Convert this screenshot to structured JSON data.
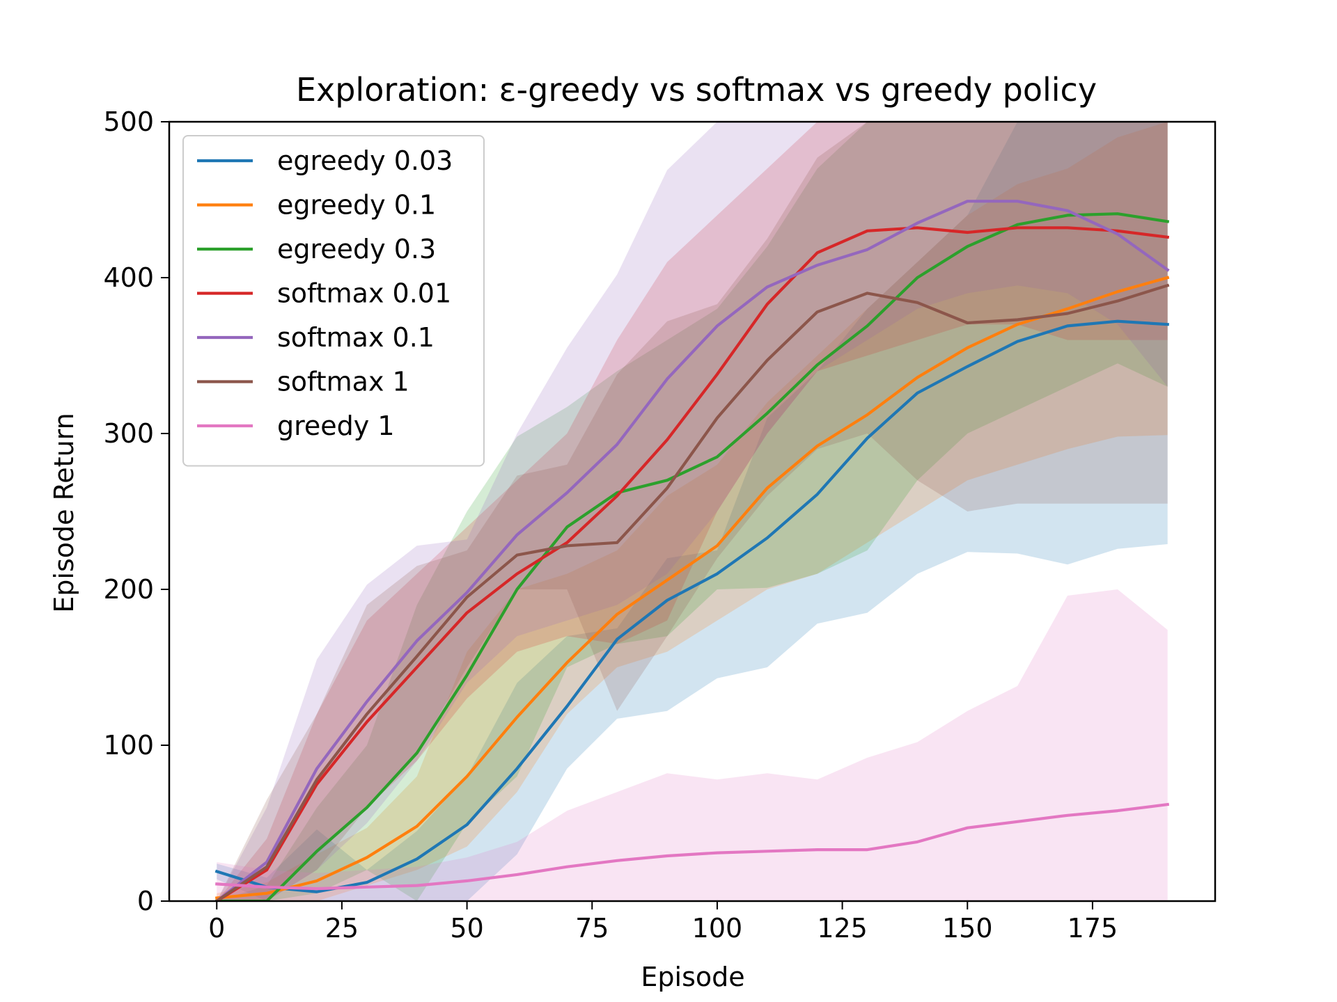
{
  "chart_data": {
    "type": "line",
    "title": "Exploration: ε-greedy vs softmax vs greedy policy",
    "xlabel": "Episode",
    "ylabel": "Episode Return",
    "xlim": [
      -9.5,
      199.5
    ],
    "ylim": [
      0,
      500
    ],
    "xticks": [
      0,
      25,
      50,
      75,
      100,
      125,
      150,
      175
    ],
    "yticks": [
      0,
      100,
      200,
      300,
      400,
      500
    ],
    "grid": false,
    "legend_position": "upper-left",
    "shaded_band": "mean ± std",
    "x": [
      0,
      10,
      20,
      30,
      40,
      50,
      60,
      70,
      80,
      90,
      100,
      110,
      120,
      130,
      140,
      150,
      160,
      170,
      180,
      190
    ],
    "series": [
      {
        "name": "egreedy 0.03",
        "color": "#1f77b4",
        "values": [
          19,
          9,
          6,
          12,
          27,
          49,
          85,
          125,
          168,
          193,
          210,
          233,
          261,
          297,
          326,
          343,
          359,
          369,
          372,
          370
        ],
        "lower": [
          14,
          0,
          0,
          0,
          0,
          0,
          30,
          85,
          117,
          122,
          143,
          150,
          178,
          185,
          210,
          224,
          223,
          216,
          226,
          229
        ],
        "upper": [
          24,
          15,
          46,
          20,
          45,
          80,
          140,
          170,
          175,
          220,
          225,
          310,
          340,
          380,
          410,
          440,
          500,
          500,
          500,
          500
        ]
      },
      {
        "name": "egreedy 0.1",
        "color": "#ff7f0e",
        "values": [
          2,
          5,
          13,
          28,
          48,
          80,
          118,
          153,
          184,
          206,
          228,
          265,
          292,
          312,
          336,
          355,
          370,
          380,
          391,
          400
        ],
        "lower": [
          0,
          0,
          0,
          10,
          20,
          35,
          70,
          120,
          150,
          160,
          180,
          200,
          210,
          230,
          250,
          270,
          280,
          290,
          298,
          299
        ],
        "upper": [
          5,
          12,
          30,
          47,
          80,
          160,
          200,
          210,
          225,
          260,
          280,
          320,
          350,
          380,
          410,
          440,
          460,
          470,
          490,
          500
        ]
      },
      {
        "name": "egreedy 0.3",
        "color": "#2ca02c",
        "values": [
          0,
          0,
          32,
          60,
          95,
          145,
          200,
          240,
          262,
          270,
          285,
          313,
          344,
          369,
          400,
          420,
          434,
          440,
          441,
          436
        ],
        "lower": [
          0,
          0,
          5,
          20,
          0,
          50,
          80,
          150,
          165,
          170,
          200,
          201,
          210,
          225,
          270,
          300,
          315,
          330,
          345,
          330
        ],
        "upper": [
          0,
          10,
          60,
          100,
          190,
          250,
          298,
          317,
          340,
          360,
          380,
          420,
          470,
          500,
          500,
          500,
          500,
          500,
          500,
          500
        ]
      },
      {
        "name": "softmax 0.01",
        "color": "#d62728",
        "values": [
          0,
          20,
          75,
          115,
          150,
          185,
          210,
          230,
          260,
          296,
          338,
          383,
          416,
          430,
          432,
          429,
          432,
          432,
          430,
          426
        ],
        "lower": [
          0,
          0,
          30,
          60,
          90,
          130,
          160,
          170,
          165,
          180,
          250,
          300,
          340,
          350,
          360,
          370,
          370,
          360,
          360,
          360
        ],
        "upper": [
          0,
          40,
          120,
          180,
          210,
          240,
          270,
          300,
          360,
          410,
          440,
          470,
          500,
          500,
          500,
          500,
          500,
          500,
          500,
          500
        ]
      },
      {
        "name": "softmax 0.1",
        "color": "#9467bd",
        "values": [
          0,
          25,
          85,
          128,
          167,
          198,
          235,
          262,
          293,
          335,
          369,
          394,
          408,
          418,
          435,
          449,
          449,
          443,
          428,
          405
        ],
        "lower": [
          0,
          0,
          20,
          50,
          90,
          140,
          170,
          180,
          190,
          210,
          250,
          300,
          340,
          360,
          380,
          390,
          395,
          390,
          370,
          330
        ],
        "upper": [
          0,
          60,
          155,
          203,
          228,
          232,
          300,
          355,
          402,
          469,
          500,
          500,
          500,
          500,
          500,
          500,
          500,
          500,
          500,
          500
        ]
      },
      {
        "name": "softmax 1",
        "color": "#8c564b",
        "values": [
          0,
          22,
          78,
          120,
          157,
          195,
          222,
          228,
          230,
          265,
          310,
          347,
          378,
          390,
          384,
          371,
          373,
          377,
          385,
          395
        ],
        "lower": [
          0,
          0,
          20,
          60,
          95,
          150,
          200,
          200,
          122,
          170,
          220,
          260,
          290,
          300,
          270,
          250,
          255,
          255,
          255,
          255
        ],
        "upper": [
          0,
          65,
          120,
          190,
          215,
          225,
          273,
          280,
          338,
          372,
          383,
          425,
          477,
          500,
          500,
          500,
          500,
          500,
          500,
          500
        ]
      },
      {
        "name": "greedy 1",
        "color": "#e377c2",
        "values": [
          11,
          9,
          8,
          9,
          10,
          13,
          17,
          22,
          26,
          29,
          31,
          32,
          33,
          33,
          38,
          47,
          51,
          55,
          58,
          62
        ],
        "lower": [
          0,
          0,
          0,
          0,
          0,
          0,
          0,
          0,
          0,
          0,
          0,
          0,
          0,
          0,
          0,
          0,
          0,
          0,
          0,
          0
        ],
        "upper": [
          25,
          20,
          18,
          20,
          22,
          28,
          38,
          58,
          70,
          82,
          78,
          82,
          78,
          92,
          102,
          122,
          138,
          196,
          200,
          174
        ]
      }
    ]
  }
}
